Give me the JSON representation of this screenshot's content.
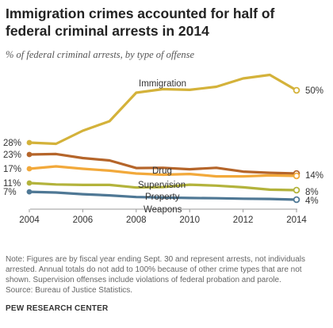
{
  "title": "Immigration crimes accounted for half of federal criminal arrests in 2014",
  "subtitle": "% of federal criminal arrests, by type of offense",
  "note": "Note: Figures are by fiscal year ending Sept. 30 and represent arrests, not individuals arrested. Annual totals do not add to 100% because of other crime types that are not shown. Supervision offenses include violations of federal probation and parole.",
  "source": "Source: Bureau of Justice Statistics.",
  "brand": "PEW RESEARCH CENTER",
  "chart_data": {
    "type": "line",
    "x": [
      2004,
      2005,
      2006,
      2007,
      2008,
      2009,
      2010,
      2011,
      2012,
      2013,
      2014
    ],
    "xticks": [
      2004,
      2006,
      2008,
      2010,
      2012,
      2014
    ],
    "xlim": [
      2004,
      2014
    ],
    "ylim": [
      0,
      56
    ],
    "grid": false,
    "legend": "inline labels",
    "series": [
      {
        "name": "Immigration",
        "color": "#d4b23a",
        "values": [
          28,
          27.5,
          33,
          37,
          49,
          50.5,
          50.2,
          51.5,
          55,
          56.5,
          50
        ],
        "start_label": "28%",
        "end_label": "50%"
      },
      {
        "name": "Drug",
        "color": "#b5652a",
        "values": [
          23,
          23.2,
          21.5,
          20.5,
          17.3,
          17.4,
          16.8,
          17.4,
          15.8,
          15.3,
          15
        ],
        "start_label": "23%",
        "end_label": ""
      },
      {
        "name": "Supervision",
        "color": "#f2a93b",
        "values": [
          17,
          18,
          17,
          16.2,
          15,
          14.5,
          14.8,
          13.8,
          13.8,
          14.2,
          14
        ],
        "start_label": "17%",
        "end_label": "14%"
      },
      {
        "name": "Property",
        "color": "#b3b33c",
        "values": [
          11,
          10.4,
          10.2,
          10.2,
          9.1,
          9.3,
          10.3,
          9.9,
          9.2,
          8.2,
          8
        ],
        "start_label": "11%",
        "end_label": "8%"
      },
      {
        "name": "Weapons",
        "color": "#4f7895",
        "values": [
          7.3,
          7,
          6.3,
          5.8,
          5.1,
          4.9,
          4.7,
          4.6,
          4.4,
          4.3,
          4
        ],
        "start_label": "7%",
        "end_label": "4%"
      }
    ]
  }
}
